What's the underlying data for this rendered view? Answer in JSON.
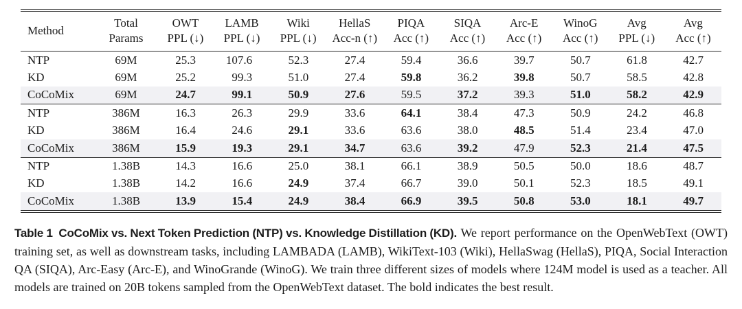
{
  "table": {
    "highlight_color": "#f1f1f4",
    "columns": [
      {
        "l1": "Method",
        "l2": ""
      },
      {
        "l1": "Total",
        "l2": "Params"
      },
      {
        "l1": "OWT",
        "l2": "PPL (↓)"
      },
      {
        "l1": "LAMB",
        "l2": "PPL (↓)"
      },
      {
        "l1": "Wiki",
        "l2": "PPL (↓)"
      },
      {
        "l1": "HellaS",
        "l2": "Acc-n (↑)"
      },
      {
        "l1": "PIQA",
        "l2": "Acc (↑)"
      },
      {
        "l1": "SIQA",
        "l2": "Acc (↑)"
      },
      {
        "l1": "Arc-E",
        "l2": "Acc (↑)"
      },
      {
        "l1": "WinoG",
        "l2": "Acc (↑)"
      },
      {
        "l1": "Avg",
        "l2": "PPL (↓)"
      },
      {
        "l1": "Avg",
        "l2": "Acc (↑)"
      }
    ],
    "groups": [
      {
        "rows": [
          {
            "method": "NTP",
            "params": "69M",
            "highlight": false,
            "bold": [],
            "values": [
              "25.3",
              "107.6",
              "52.3",
              "27.4",
              "59.4",
              "36.6",
              "39.7",
              "50.7",
              "61.8",
              "42.7"
            ]
          },
          {
            "method": "KD",
            "params": "69M",
            "highlight": false,
            "bold": [
              4,
              6
            ],
            "values": [
              "25.2",
              "99.3",
              "51.0",
              "27.4",
              "59.8",
              "36.2",
              "39.8",
              "50.7",
              "58.5",
              "42.8"
            ]
          },
          {
            "method": "CoCoMix",
            "params": "69M",
            "highlight": true,
            "bold": [
              0,
              1,
              2,
              3,
              5,
              7,
              8,
              9
            ],
            "values": [
              "24.7",
              "99.1",
              "50.9",
              "27.6",
              "59.5",
              "37.2",
              "39.3",
              "51.0",
              "58.2",
              "42.9"
            ]
          }
        ]
      },
      {
        "rows": [
          {
            "method": "NTP",
            "params": "386M",
            "highlight": false,
            "bold": [
              4
            ],
            "values": [
              "16.3",
              "26.3",
              "29.9",
              "33.6",
              "64.1",
              "38.4",
              "47.3",
              "50.9",
              "24.2",
              "46.8"
            ]
          },
          {
            "method": "KD",
            "params": "386M",
            "highlight": false,
            "bold": [
              2,
              6
            ],
            "values": [
              "16.4",
              "24.6",
              "29.1",
              "33.6",
              "63.6",
              "38.0",
              "48.5",
              "51.4",
              "23.4",
              "47.0"
            ]
          },
          {
            "method": "CoCoMix",
            "params": "386M",
            "highlight": true,
            "bold": [
              0,
              1,
              2,
              3,
              5,
              7,
              8,
              9
            ],
            "values": [
              "15.9",
              "19.3",
              "29.1",
              "34.7",
              "63.6",
              "39.2",
              "47.9",
              "52.3",
              "21.4",
              "47.5"
            ]
          }
        ]
      },
      {
        "rows": [
          {
            "method": "NTP",
            "params": "1.38B",
            "highlight": false,
            "bold": [],
            "values": [
              "14.3",
              "16.6",
              "25.0",
              "38.1",
              "66.1",
              "38.9",
              "50.5",
              "50.0",
              "18.6",
              "48.7"
            ]
          },
          {
            "method": "KD",
            "params": "1.38B",
            "highlight": false,
            "bold": [
              2
            ],
            "values": [
              "14.2",
              "16.6",
              "24.9",
              "37.4",
              "66.7",
              "39.0",
              "50.1",
              "52.3",
              "18.5",
              "49.1"
            ]
          },
          {
            "method": "CoCoMix",
            "params": "1.38B",
            "highlight": true,
            "bold": [
              0,
              1,
              2,
              3,
              4,
              5,
              6,
              7,
              8,
              9
            ],
            "values": [
              "13.9",
              "15.4",
              "24.9",
              "38.4",
              "66.9",
              "39.5",
              "50.8",
              "53.0",
              "18.1",
              "49.7"
            ]
          }
        ]
      }
    ]
  },
  "caption": {
    "label_bold": "Table 1  CoCoMix vs. Next Token Prediction (NTP) vs. Knowledge Distillation (KD).",
    "body": " We report performance on the OpenWebText (OWT) training set, as well as downstream tasks, including LAMBADA (LAMB), WikiText-103 (Wiki), HellaSwag (HellaS), PIQA, Social Interaction QA (SIQA), Arc-Easy (Arc-E), and WinoGrande (WinoG). We train three different sizes of models where 124M model is used as a teacher. All models are trained on 20B tokens sampled from the OpenWebText dataset. The bold indicates the best result."
  }
}
